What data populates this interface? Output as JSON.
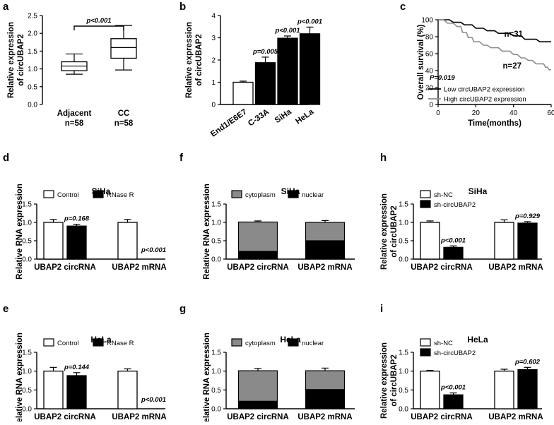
{
  "chart_data": [
    {
      "panel": "a",
      "type": "box",
      "ylabel": [
        "Relative expression",
        "of circUBAP2"
      ],
      "ylim": [
        0,
        2.5
      ],
      "yticks": [
        "0.0",
        "0.5",
        "1.0",
        "1.5",
        "2.0",
        "2.5"
      ],
      "categories": [
        "Adjacent",
        "CC"
      ],
      "category_sub": [
        "n=58",
        "n=58"
      ],
      "boxes": [
        {
          "min": 0.85,
          "q1": 0.95,
          "median": 1.08,
          "q3": 1.2,
          "max": 1.42
        },
        {
          "min": 0.97,
          "q1": 1.3,
          "median": 1.6,
          "q3": 1.85,
          "max": 2.22
        }
      ],
      "pvalues": [
        "p<0.001"
      ]
    },
    {
      "panel": "b",
      "type": "bar",
      "ylabel": [
        "Relative expression",
        "of circUBAP2"
      ],
      "ylim": [
        0,
        4
      ],
      "yticks": [
        "0",
        "1",
        "2",
        "3",
        "4"
      ],
      "categories": [
        "End1/E6E7",
        "C-33A",
        "SiHa",
        "HeLa"
      ],
      "values": [
        1.0,
        1.88,
        2.98,
        3.18
      ],
      "errors": [
        0.05,
        0.25,
        0.1,
        0.3
      ],
      "pvalues": [
        "",
        "p=0.005",
        "p<0.001",
        "p<0.001"
      ]
    },
    {
      "panel": "c",
      "type": "line",
      "ylabel": [
        "Overall survival (%)"
      ],
      "xlabel": "Time(months)",
      "xlim": [
        0,
        60
      ],
      "ylim": [
        0,
        100
      ],
      "xticks": [
        "0",
        "20",
        "40",
        "60"
      ],
      "yticks": [
        "0",
        "20",
        "40",
        "60",
        "80",
        "100"
      ],
      "series": [
        {
          "name": "Low circUBAP2 expression",
          "end_label": "n=31",
          "points": [
            [
              0,
              100
            ],
            [
              6,
              100
            ],
            [
              8,
              97
            ],
            [
              12,
              97
            ],
            [
              14,
              94
            ],
            [
              18,
              94
            ],
            [
              20,
              90
            ],
            [
              24,
              90
            ],
            [
              26,
              87
            ],
            [
              30,
              87
            ],
            [
              32,
              84
            ],
            [
              38,
              84
            ],
            [
              40,
              81
            ],
            [
              44,
              81
            ],
            [
              46,
              77
            ],
            [
              52,
              77
            ],
            [
              54,
              74
            ],
            [
              60,
              74
            ]
          ]
        },
        {
          "name": "High circUBAP2 expression",
          "end_label": "n=27",
          "points": [
            [
              0,
              100
            ],
            [
              3,
              100
            ],
            [
              5,
              96
            ],
            [
              8,
              96
            ],
            [
              10,
              92
            ],
            [
              12,
              92
            ],
            [
              13,
              85
            ],
            [
              15,
              85
            ],
            [
              16,
              79
            ],
            [
              18,
              79
            ],
            [
              19,
              74
            ],
            [
              22,
              74
            ],
            [
              24,
              70
            ],
            [
              26,
              70
            ],
            [
              28,
              67
            ],
            [
              32,
              67
            ],
            [
              34,
              63
            ],
            [
              38,
              63
            ],
            [
              40,
              59
            ],
            [
              42,
              59
            ],
            [
              44,
              55
            ],
            [
              46,
              55
            ],
            [
              48,
              52
            ],
            [
              50,
              52
            ],
            [
              52,
              48
            ],
            [
              56,
              48
            ],
            [
              57,
              44
            ],
            [
              58,
              44
            ],
            [
              59,
              41
            ],
            [
              60,
              41
            ]
          ]
        }
      ],
      "pvalues": [
        "P=0.019"
      ]
    },
    {
      "panel": "d",
      "title": "SiHa",
      "type": "bar",
      "ylabel": [
        "Relative RNA expression"
      ],
      "ylim": [
        0,
        1.5
      ],
      "yticks": [
        "0.0",
        "0.5",
        "1.0",
        "1.5"
      ],
      "categories": [
        "UBAP2 circRNA",
        "UBAP2 mRNA"
      ],
      "series": [
        {
          "name": "Control",
          "values": [
            1.0,
            1.0
          ],
          "errors": [
            0.08,
            0.08
          ]
        },
        {
          "name": "RNase R",
          "values": [
            0.9,
            0.0
          ],
          "errors": [
            0.05,
            0.0
          ]
        }
      ],
      "pvalues": [
        "p=0.168",
        "p<0.001"
      ]
    },
    {
      "panel": "e",
      "title": "HeLa",
      "type": "bar",
      "ylabel": [
        "Relative RNA expression"
      ],
      "ylim": [
        0,
        1.5
      ],
      "yticks": [
        "0.0",
        "0.5",
        "1.0",
        "1.5"
      ],
      "categories": [
        "UBAP2 circRNA",
        "UBAP2 mRNA"
      ],
      "series": [
        {
          "name": "Control",
          "values": [
            1.0,
            1.0
          ],
          "errors": [
            0.1,
            0.06
          ]
        },
        {
          "name": "RNase R",
          "values": [
            0.88,
            0.0
          ],
          "errors": [
            0.08,
            0.0
          ]
        }
      ],
      "pvalues": [
        "p=0.144",
        "p<0.001"
      ]
    },
    {
      "panel": "f",
      "title": "SiHa",
      "type": "stacked_bar",
      "ylabel": [
        "Relative RNA expression"
      ],
      "ylim": [
        0,
        1.5
      ],
      "yticks": [
        "0.0",
        "0.5",
        "1.0",
        "1.5"
      ],
      "categories": [
        "UBAP2 circRNA",
        "UBAP2 mRNA"
      ],
      "series": [
        {
          "name": "nuclear",
          "values": [
            0.21,
            0.5
          ],
          "errors": [
            0.04,
            0.05
          ]
        },
        {
          "name": "cytoplasm",
          "values": [
            0.8,
            0.5
          ],
          "errors": [
            0.03,
            0.05
          ]
        }
      ]
    },
    {
      "panel": "g",
      "title": "HeLa",
      "type": "stacked_bar",
      "ylabel": [
        "Relative RNA expression"
      ],
      "ylim": [
        0,
        1.5
      ],
      "yticks": [
        "0.0",
        "0.5",
        "1.0",
        "1.5"
      ],
      "categories": [
        "UBAP2 circRNA",
        "UBAP2 mRNA"
      ],
      "series": [
        {
          "name": "nuclear",
          "values": [
            0.2,
            0.51
          ],
          "errors": [
            0.07,
            0.08
          ]
        },
        {
          "name": "cytoplasm",
          "values": [
            0.81,
            0.5
          ],
          "errors": [
            0.06,
            0.07
          ]
        }
      ]
    },
    {
      "panel": "h",
      "title": "SiHa",
      "type": "bar",
      "ylabel": [
        "Relative expression",
        "of circUBAP2"
      ],
      "ylim": [
        0,
        1.5
      ],
      "yticks": [
        "0.0",
        "0.5",
        "1.0",
        "1.5"
      ],
      "categories": [
        "UBAP2 circRNA",
        "UBAP2 mRNA"
      ],
      "series": [
        {
          "name": "sh-NC",
          "values": [
            1.0,
            1.0
          ],
          "errors": [
            0.04,
            0.07
          ]
        },
        {
          "name": "sh-circUBAP2",
          "values": [
            0.32,
            0.98
          ],
          "errors": [
            0.04,
            0.04
          ]
        }
      ],
      "pvalues": [
        "p<0.001",
        "p=0.929"
      ]
    },
    {
      "panel": "i",
      "title": "HeLa",
      "type": "bar",
      "ylabel": [
        "Relative expression",
        "of circUBAP2"
      ],
      "ylim": [
        0,
        1.5
      ],
      "yticks": [
        "0.0",
        "0.5",
        "1.0",
        "1.5"
      ],
      "categories": [
        "UBAP2 circRNA",
        "UBAP2 mRNA"
      ],
      "series": [
        {
          "name": "sh-NC",
          "values": [
            1.0,
            1.0
          ],
          "errors": [
            0.02,
            0.05
          ]
        },
        {
          "name": "sh-circUBAP2",
          "values": [
            0.37,
            1.04
          ],
          "errors": [
            0.05,
            0.06
          ]
        }
      ],
      "pvalues": [
        "p<0.001",
        "p=0.602"
      ]
    }
  ]
}
